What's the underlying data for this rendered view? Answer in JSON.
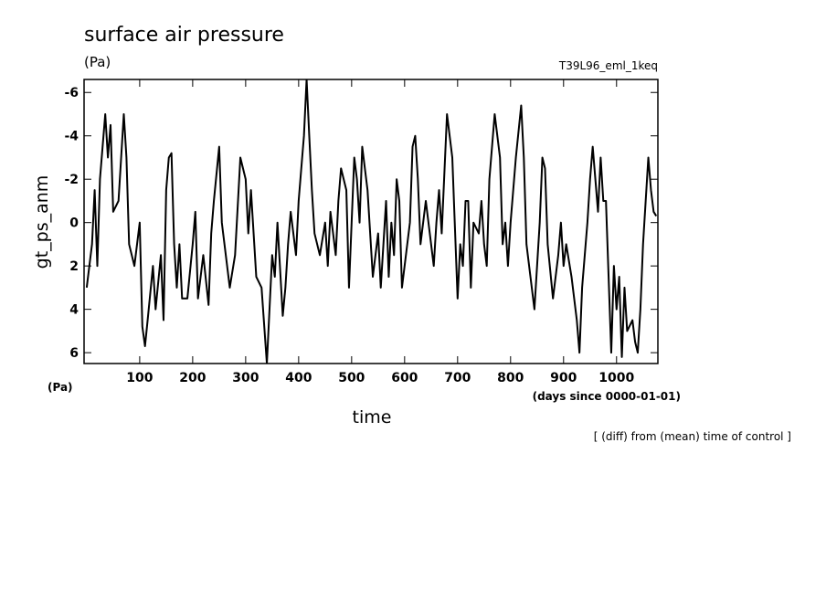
{
  "chart_data": {
    "type": "line",
    "title": "surface air pressure",
    "unit_label": "(Pa)",
    "run_label": "T39L96_eml_1keq",
    "y_label": "gt_ps_anm",
    "y_unit_label": "(Pa)",
    "x_label": "time",
    "x_unit_label": "(days since 0000-01-01)",
    "note": "[ (diff) from (mean) time of control ]",
    "color": "#000000",
    "x": [
      0,
      10,
      15,
      20,
      25,
      35,
      40,
      45,
      50,
      60,
      70,
      75,
      80,
      90,
      100,
      105,
      110,
      115,
      125,
      130,
      140,
      145,
      150,
      155,
      160,
      165,
      170,
      175,
      180,
      190,
      200,
      205,
      210,
      220,
      230,
      235,
      240,
      250,
      255,
      260,
      270,
      280,
      290,
      300,
      305,
      310,
      320,
      330,
      340,
      345,
      350,
      355,
      360,
      370,
      375,
      380,
      385,
      395,
      400,
      410,
      415,
      420,
      425,
      430,
      440,
      450,
      455,
      460,
      470,
      475,
      480,
      490,
      495,
      500,
      505,
      510,
      515,
      520,
      530,
      540,
      550,
      555,
      560,
      565,
      570,
      575,
      580,
      585,
      590,
      595,
      605,
      610,
      615,
      620,
      625,
      630,
      640,
      645,
      655,
      660,
      665,
      670,
      680,
      690,
      700,
      705,
      710,
      715,
      720,
      725,
      730,
      740,
      745,
      750,
      755,
      760,
      770,
      780,
      785,
      790,
      795,
      800,
      810,
      820,
      825,
      830,
      840,
      845,
      850,
      855,
      860,
      865,
      870,
      880,
      890,
      895,
      900,
      905,
      915,
      925,
      930,
      935,
      945,
      950,
      955,
      960,
      965,
      970,
      975,
      980,
      985,
      990,
      995,
      1000,
      1005,
      1010,
      1015,
      1020,
      1030,
      1035,
      1040,
      1045,
      1050,
      1055,
      1060,
      1065,
      1070,
      1075
    ],
    "values": [
      3,
      1,
      -1.5,
      2,
      -2,
      -5,
      -3,
      -4.5,
      -0.5,
      -1,
      -5,
      -3,
      1,
      2,
      0,
      4.8,
      5.7,
      4.5,
      2,
      4,
      1.5,
      4.5,
      -1.5,
      -3,
      -3.2,
      1,
      3,
      1,
      3.5,
      3.5,
      1,
      -0.5,
      3.5,
      1.5,
      3.8,
      0.5,
      -1,
      -3.5,
      0,
      1,
      3,
      1.5,
      -3,
      -2,
      0.5,
      -1.5,
      2.5,
      3,
      6.5,
      4,
      1.5,
      2.5,
      0,
      4.3,
      3,
      1,
      -0.5,
      1.5,
      -1,
      -4,
      -6.6,
      -4,
      -1.5,
      0.5,
      1.5,
      0,
      2,
      -0.5,
      1.5,
      -1,
      -2.5,
      -1.5,
      3,
      0,
      -3,
      -2,
      0,
      -3.5,
      -1.5,
      2.5,
      0.5,
      3,
      1,
      -1,
      2.5,
      0,
      1.5,
      -2,
      -1,
      3,
      1,
      0,
      -3.5,
      -4,
      -2,
      1,
      -1,
      0,
      2,
      0,
      -1.5,
      0.5,
      -5,
      -3,
      3.5,
      1,
      2,
      -1,
      -1,
      3,
      0,
      0.5,
      -1,
      1,
      2,
      -2,
      -5,
      -3,
      1,
      0,
      2,
      0,
      -3,
      -5.4,
      -3,
      1,
      3,
      4,
      2,
      0,
      -3,
      -2.5,
      1,
      3.5,
      1.5,
      0,
      2,
      1,
      2.5,
      4.5,
      6,
      3,
      0,
      -2,
      -3.5,
      -2,
      -0.5,
      -3,
      -1,
      -1,
      2.5,
      6,
      2,
      4,
      2.5,
      6.2,
      3,
      5,
      4.5,
      5.5,
      6,
      4,
      1,
      -1,
      -3,
      -1.5,
      -0.5,
      -0.3
    ],
    "xlim": [
      -5,
      1078
    ],
    "ylim": [
      6.5,
      -6.6
    ],
    "xticks": [
      100,
      200,
      300,
      400,
      500,
      600,
      700,
      800,
      900,
      1000
    ],
    "yticks": [
      -6,
      -4,
      -2,
      0,
      2,
      4,
      6
    ]
  }
}
